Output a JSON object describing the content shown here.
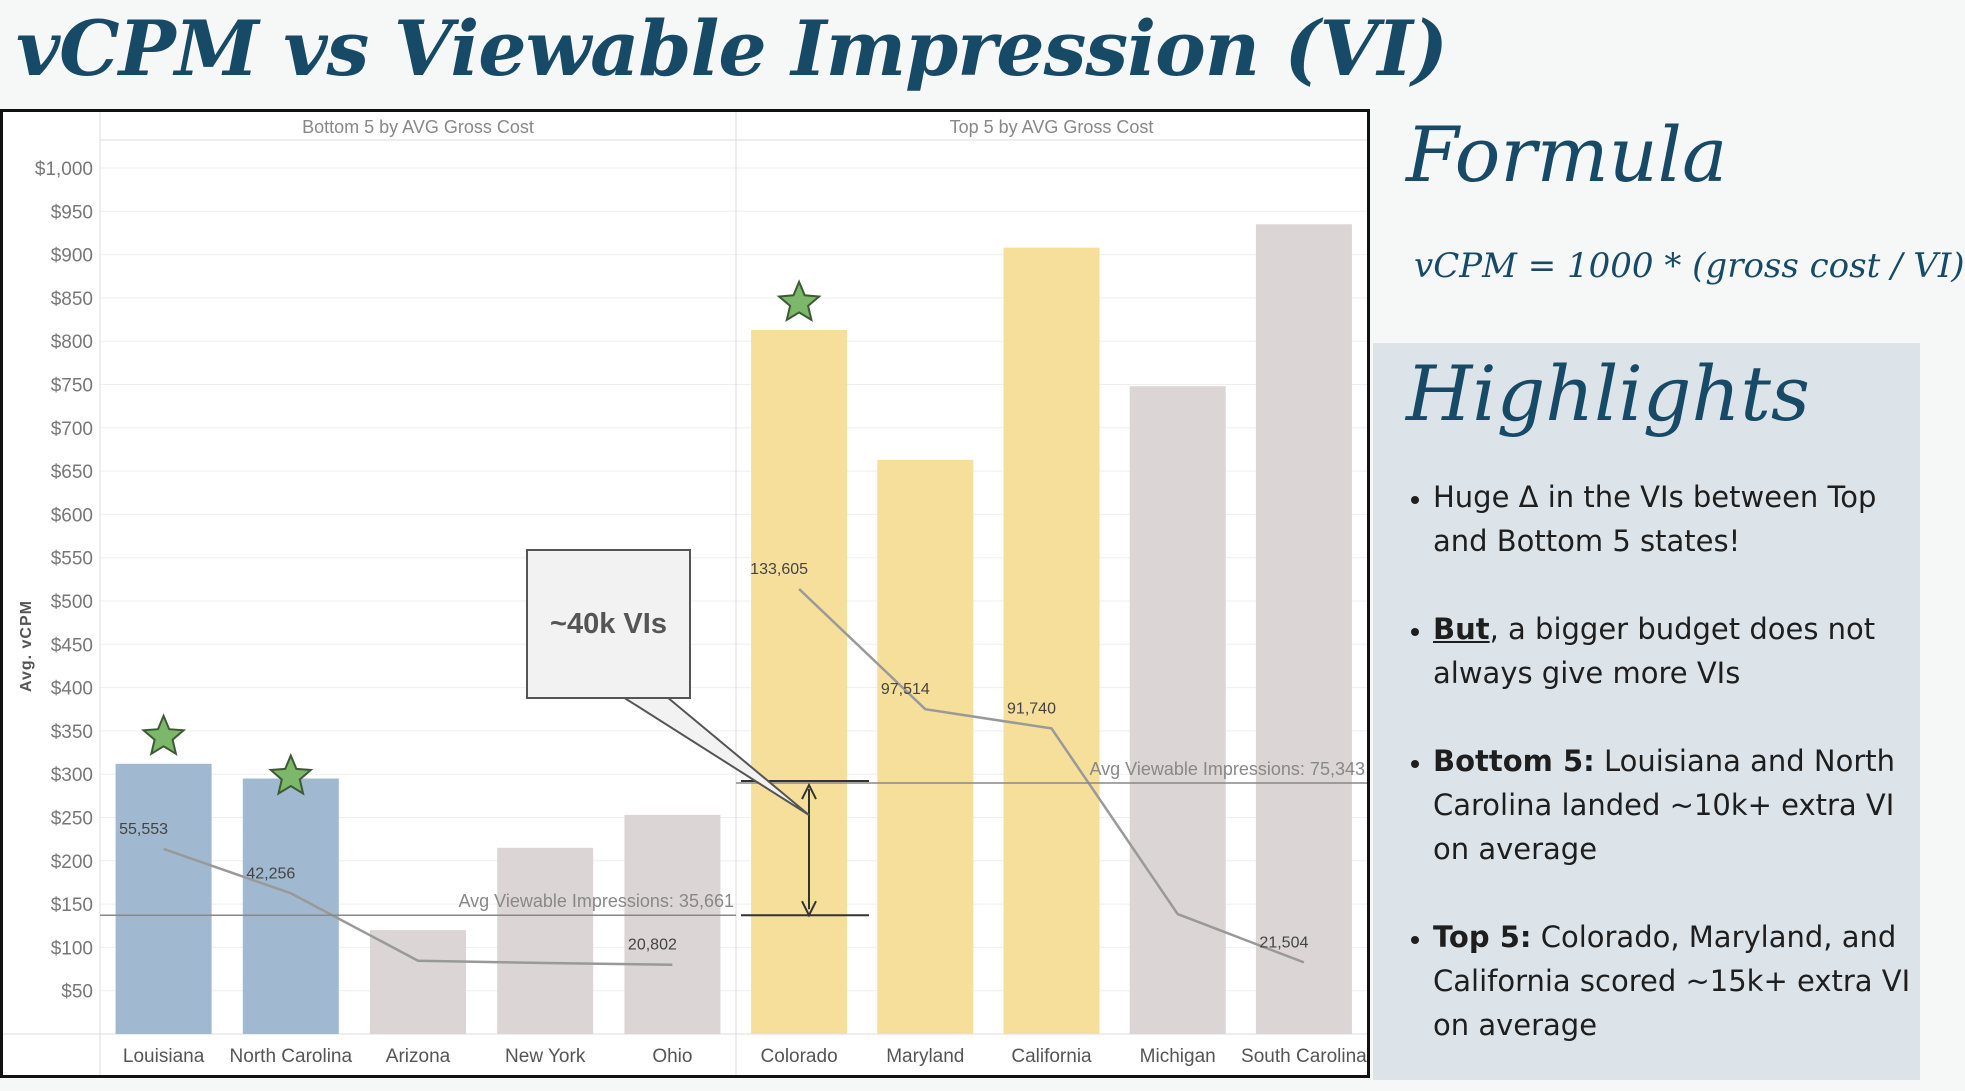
{
  "title": "vCPM vs Viewable Impression (VI)",
  "formula": {
    "heading": "Formula",
    "text": "vCPM = 1000 * (gross cost / VI)"
  },
  "highlights": {
    "heading": "Highlights",
    "items": [
      {
        "lead": "",
        "text": "Huge Δ in the VIs between Top and Bottom 5 states!"
      },
      {
        "lead": "But",
        "text": ", a bigger budget does not always give more VIs"
      },
      {
        "lead": "Bottom 5:",
        "text": " Louisiana and North Carolina landed ~10k+ extra VI on average"
      },
      {
        "lead": "Top 5:",
        "text": " Colorado, Maryland, and California scored ~15k+ extra VI on average"
      }
    ]
  },
  "callout": {
    "text": "~40k VIs"
  },
  "colors": {
    "title": "#174a67",
    "bar_blue": "#a0b8d0",
    "bar_yellow": "#f6df9b",
    "bar_gray": "#dbd5d5",
    "line": "#999999",
    "star": "#7cb86a"
  },
  "chart_data": {
    "type": "bar",
    "ylabel": "Avg. vCPM",
    "ylim": [
      0,
      1000
    ],
    "yticks": [
      "$50",
      "$100",
      "$150",
      "$200",
      "$250",
      "$300",
      "$350",
      "$400",
      "$450",
      "$500",
      "$550",
      "$600",
      "$650",
      "$700",
      "$750",
      "$800",
      "$850",
      "$900",
      "$950",
      "$1,000"
    ],
    "secondary_series_name": "Viewable Impressions",
    "panels": [
      {
        "title": "Bottom 5 by AVG Gross Cost",
        "categories": [
          "Louisiana",
          "North Carolina",
          "Arizona",
          "New York",
          "Ohio"
        ],
        "vcpm": [
          312,
          295,
          120,
          215,
          253
        ],
        "bar_colors": [
          "blue",
          "blue",
          "gray",
          "gray",
          "gray"
        ],
        "vi": [
          55553,
          42256,
          22000,
          21300,
          20802
        ],
        "vi_labels": [
          "55,553",
          "42,256",
          "",
          "",
          "20,802"
        ],
        "stars": [
          true,
          true,
          false,
          false,
          false
        ],
        "avg_vi": 35661,
        "avg_label": "Avg Viewable Impressions: 35,661"
      },
      {
        "title": "Top 5 by AVG Gross Cost",
        "categories": [
          "Colorado",
          "Maryland",
          "California",
          "Michigan",
          "South Carolina"
        ],
        "vcpm": [
          813,
          663,
          908,
          748,
          935
        ],
        "bar_colors": [
          "yellow",
          "yellow",
          "yellow",
          "gray",
          "gray"
        ],
        "vi": [
          133605,
          97514,
          91740,
          36000,
          21504
        ],
        "vi_labels": [
          "133,605",
          "97,514",
          "91,740",
          "",
          "21,504"
        ],
        "stars": [
          true,
          false,
          false,
          false,
          false
        ],
        "avg_vi": 75343,
        "avg_label": "Avg Viewable Impressions: 75,343"
      }
    ]
  }
}
